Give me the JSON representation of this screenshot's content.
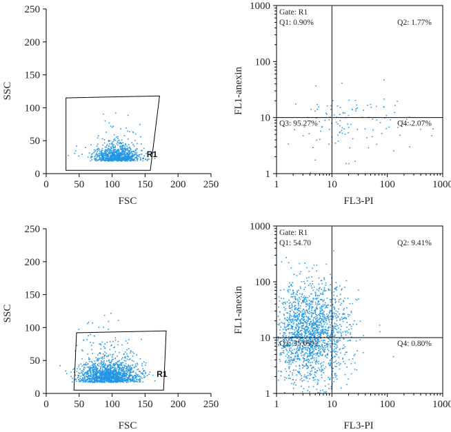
{
  "colors": {
    "dot": "#2196e6",
    "axis": "#000000"
  },
  "chart_data": [
    {
      "id": "p1",
      "type": "scatter",
      "xlabel": "FSC",
      "ylabel": "SSC",
      "xlim": [
        0,
        250
      ],
      "ylim": [
        0,
        250
      ],
      "xticks": [
        0,
        50,
        100,
        150,
        200,
        250
      ],
      "yticks": [
        0,
        50,
        100,
        150,
        200,
        250
      ],
      "gate": {
        "label": "R1",
        "polygon": [
          [
            30,
            5
          ],
          [
            30,
            115
          ],
          [
            172,
            118
          ],
          [
            158,
            5
          ]
        ]
      },
      "cluster": {
        "center": [
          105,
          25
        ],
        "spread": [
          18,
          10
        ],
        "n": 900
      }
    },
    {
      "id": "p2",
      "type": "scatter",
      "xlabel": "FL3-PI",
      "ylabel": "FL1-anexin",
      "log": true,
      "xlim": [
        1,
        1000
      ],
      "ylim": [
        1,
        1000
      ],
      "xticks": [
        1,
        10,
        100,
        1000
      ],
      "yticks": [
        1,
        10,
        100,
        1000
      ],
      "divider": [
        10,
        10
      ],
      "gate_label": "Gate: R1",
      "quadrants": {
        "Q1": "Q1: 0.90%",
        "Q2": "Q2: 1.77%",
        "Q3": "Q3: 95.27%",
        "Q4": "Q4: 2.07%"
      },
      "cluster": {
        "center": [
          20,
          8
        ],
        "spread_log": [
          0.55,
          0.3
        ],
        "n": 120
      }
    },
    {
      "id": "p3",
      "type": "scatter",
      "xlabel": "FSC",
      "ylabel": "SSC",
      "xlim": [
        0,
        250
      ],
      "ylim": [
        0,
        250
      ],
      "xticks": [
        0,
        50,
        100,
        150,
        200,
        250
      ],
      "yticks": [
        0,
        50,
        100,
        150,
        200,
        250
      ],
      "gate": {
        "label": "R1",
        "polygon": [
          [
            42,
            5
          ],
          [
            46,
            92
          ],
          [
            182,
            95
          ],
          [
            178,
            5
          ]
        ]
      },
      "cluster": {
        "center": [
          95,
          25
        ],
        "spread": [
          22,
          15
        ],
        "n": 1500
      }
    },
    {
      "id": "p4",
      "type": "scatter",
      "xlabel": "FL3-PI",
      "ylabel": "FL1-anexin",
      "log": true,
      "xlim": [
        1,
        1000
      ],
      "ylim": [
        1,
        1000
      ],
      "xticks": [
        1,
        10,
        100,
        1000
      ],
      "yticks": [
        1,
        10,
        100,
        1000
      ],
      "divider": [
        10,
        10
      ],
      "gate_label": "Gate: R1",
      "quadrants": {
        "Q1": "Q1: 54.70",
        "Q2": "Q2: 9.41%",
        "Q3": "Q3: 35.09%",
        "Q4": "Q4: 0.80%"
      },
      "cluster": {
        "center": [
          4,
          12
        ],
        "spread_log": [
          0.35,
          0.45
        ],
        "n": 1800
      }
    }
  ]
}
